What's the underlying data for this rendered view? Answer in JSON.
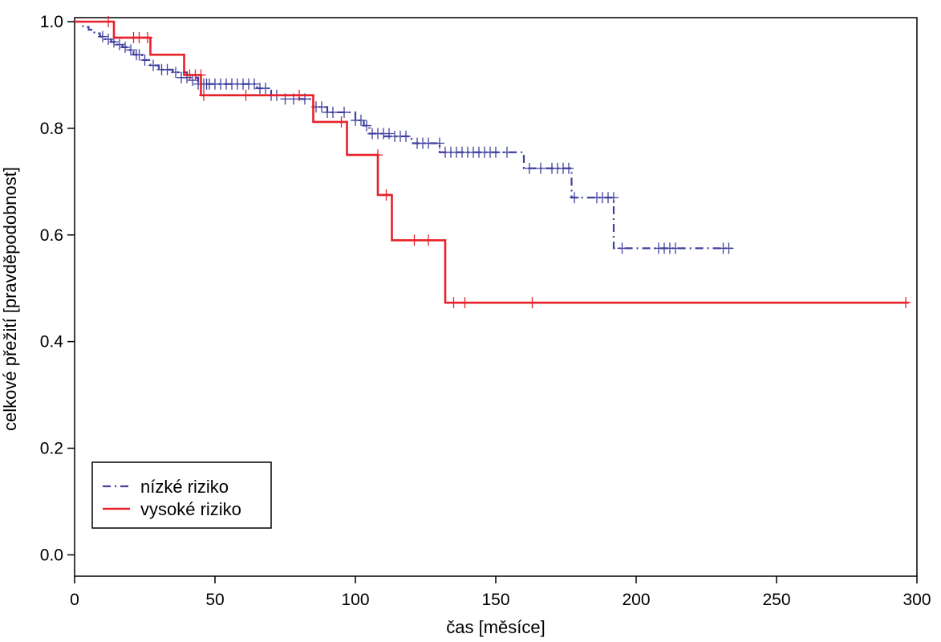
{
  "chart_data": {
    "type": "line",
    "title": "",
    "xlabel": "čas [měsíce]",
    "ylabel": "celkové přežití [pravděpodobnost]",
    "xlim": [
      0,
      300
    ],
    "ylim": [
      0,
      1
    ],
    "x_ticks": [
      0,
      50,
      100,
      150,
      200,
      250,
      300
    ],
    "x_tick_labels": [
      "0",
      "50",
      "100",
      "150",
      "200",
      "250",
      "300"
    ],
    "y_ticks": [
      0,
      0.2,
      0.4,
      0.6,
      0.8,
      1.0
    ],
    "y_tick_labels": [
      "0.0",
      "0.2",
      "0.4",
      "0.6",
      "0.8",
      "1.0"
    ],
    "grid": false,
    "legend": "bottom-left",
    "series": [
      {
        "name": "nízké riziko",
        "color": "#3f3f9f",
        "dash": "dashdot",
        "step": true,
        "x": [
          0,
          3,
          5,
          7,
          9,
          11,
          13,
          15,
          17,
          19,
          21,
          24,
          27,
          30,
          35,
          40,
          44,
          50,
          60,
          65,
          70,
          80,
          85,
          90,
          100,
          103,
          105,
          110,
          120,
          130,
          150,
          160,
          175,
          177,
          190,
          192,
          234
        ],
        "y": [
          1.0,
          0.99,
          0.985,
          0.978,
          0.972,
          0.967,
          0.962,
          0.957,
          0.952,
          0.947,
          0.938,
          0.928,
          0.918,
          0.91,
          0.905,
          0.895,
          0.883,
          0.883,
          0.883,
          0.875,
          0.862,
          0.855,
          0.84,
          0.83,
          0.815,
          0.805,
          0.79,
          0.785,
          0.772,
          0.755,
          0.755,
          0.725,
          0.725,
          0.67,
          0.67,
          0.575,
          0.575
        ],
        "censor_x": [
          10,
          12,
          14,
          16,
          18,
          20,
          22,
          23,
          25,
          28,
          31,
          33,
          36,
          38,
          40,
          42,
          44,
          46,
          47,
          48,
          50,
          52,
          54,
          56,
          58,
          60,
          62,
          64,
          66,
          68,
          70,
          72,
          75,
          78,
          82,
          86,
          88,
          90,
          92,
          96,
          100,
          102,
          104,
          106,
          108,
          110,
          112,
          114,
          116,
          118,
          122,
          124,
          126,
          130,
          132,
          134,
          136,
          138,
          140,
          142,
          144,
          146,
          148,
          150,
          154,
          162,
          166,
          170,
          172,
          174,
          176,
          178,
          186,
          188,
          190,
          192,
          195,
          208,
          210,
          212,
          214,
          231,
          233
        ],
        "censor_y": [
          0.972,
          0.967,
          0.962,
          0.957,
          0.952,
          0.947,
          0.938,
          0.938,
          0.928,
          0.918,
          0.91,
          0.91,
          0.905,
          0.895,
          0.895,
          0.89,
          0.883,
          0.883,
          0.883,
          0.883,
          0.883,
          0.883,
          0.883,
          0.883,
          0.883,
          0.883,
          0.883,
          0.883,
          0.875,
          0.875,
          0.862,
          0.862,
          0.855,
          0.855,
          0.855,
          0.84,
          0.84,
          0.83,
          0.83,
          0.83,
          0.815,
          0.815,
          0.805,
          0.79,
          0.79,
          0.79,
          0.79,
          0.785,
          0.785,
          0.785,
          0.772,
          0.772,
          0.772,
          0.772,
          0.755,
          0.755,
          0.755,
          0.755,
          0.755,
          0.755,
          0.755,
          0.755,
          0.755,
          0.755,
          0.755,
          0.725,
          0.725,
          0.725,
          0.725,
          0.725,
          0.725,
          0.67,
          0.67,
          0.67,
          0.67,
          0.67,
          0.575,
          0.575,
          0.575,
          0.575,
          0.575,
          0.575,
          0.575
        ]
      },
      {
        "name": "vysoké riziko",
        "color": "#e8202a",
        "dash": "solid",
        "step": true,
        "x": [
          0,
          14,
          27,
          39,
          45,
          85,
          97,
          108,
          113,
          132,
          297
        ],
        "y": [
          1.0,
          0.97,
          0.938,
          0.9,
          0.862,
          0.812,
          0.75,
          0.675,
          0.59,
          0.473,
          0.473
        ],
        "censor_x": [
          12,
          21,
          23,
          26,
          41,
          43,
          45,
          46,
          61,
          80,
          95,
          108,
          111,
          121,
          126,
          135,
          139,
          163,
          296
        ],
        "censor_y": [
          1.0,
          0.97,
          0.97,
          0.97,
          0.9,
          0.9,
          0.9,
          0.862,
          0.862,
          0.862,
          0.812,
          0.75,
          0.675,
          0.59,
          0.59,
          0.473,
          0.473,
          0.473,
          0.473
        ]
      }
    ]
  }
}
